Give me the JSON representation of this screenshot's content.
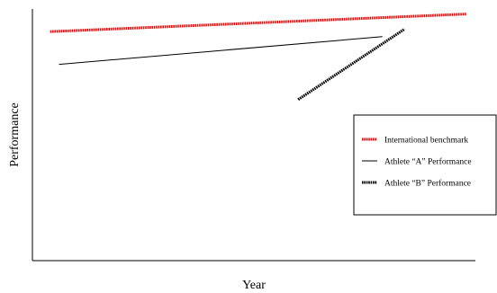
{
  "chart_data": {
    "type": "line",
    "title": "",
    "xlabel": "Year",
    "ylabel": "Performance",
    "xlim": [
      0,
      100
    ],
    "ylim": [
      0,
      100
    ],
    "grid": false,
    "legend_position": "right",
    "series": [
      {
        "name": "International benchmark",
        "color": "#ff0000",
        "style": "dotted-thick",
        "points": [
          [
            4,
            91
          ],
          [
            98,
            98
          ]
        ]
      },
      {
        "name": "Athlete “A” Performance",
        "color": "#000000",
        "style": "solid-thin",
        "points": [
          [
            6,
            78
          ],
          [
            79,
            89
          ]
        ]
      },
      {
        "name": "Athlete “B” Performance",
        "color": "#000000",
        "style": "dotted-thick",
        "points": [
          [
            60,
            64
          ],
          [
            84,
            92
          ]
        ]
      }
    ]
  }
}
